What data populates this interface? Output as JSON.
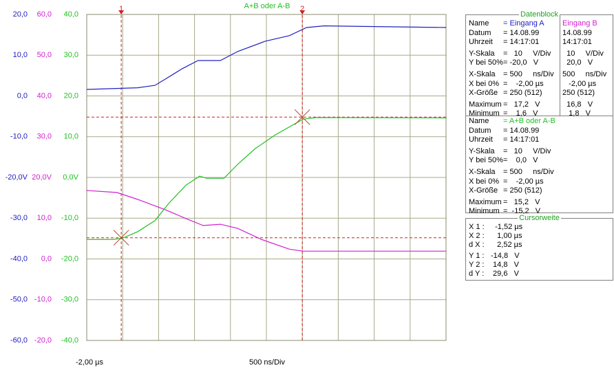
{
  "plot": {
    "title": "A+B oder A-B",
    "xlim": [
      -2,
      3
    ],
    "xticks": [
      -2,
      -1.5,
      -1,
      -0.5,
      0,
      0.5,
      1,
      1.5,
      2,
      2.5,
      3
    ],
    "x_start_label": "-2,00 µs",
    "x_scale_label": "500 ns/Div",
    "axes": [
      {
        "color": "#2020c0",
        "ylim": [
          -60,
          20
        ],
        "yticks": [
          {
            "value": 20,
            "label": "20,0"
          },
          {
            "value": 10,
            "label": "10,0"
          },
          {
            "value": 0,
            "label": "0,0"
          },
          {
            "value": -10,
            "label": "-10,0"
          },
          {
            "value": -20,
            "label": "-20,0V"
          },
          {
            "value": -30,
            "label": "-30,0"
          },
          {
            "value": -40,
            "label": "-40,0"
          },
          {
            "value": -50,
            "label": "-50,0"
          },
          {
            "value": -60,
            "label": "-60,0"
          }
        ]
      },
      {
        "color": "#d020d0",
        "ylim": [
          -20,
          60
        ],
        "yticks": [
          {
            "value": 60,
            "label": "60,0"
          },
          {
            "value": 50,
            "label": "50,0"
          },
          {
            "value": 40,
            "label": "40,0"
          },
          {
            "value": 30,
            "label": "30,0"
          },
          {
            "value": 20,
            "label": "20,0V"
          },
          {
            "value": 10,
            "label": "10,0"
          },
          {
            "value": 0,
            "label": "0,0"
          },
          {
            "value": -10,
            "label": "-10,0"
          },
          {
            "value": -20,
            "label": "-20,0"
          }
        ]
      },
      {
        "color": "#20c020",
        "ylim": [
          -40,
          40
        ],
        "yticks": [
          {
            "value": 40,
            "label": "40,0"
          },
          {
            "value": 30,
            "label": "30,0"
          },
          {
            "value": 20,
            "label": "20,0"
          },
          {
            "value": 10,
            "label": "10,0"
          },
          {
            "value": 0,
            "label": "0,0V"
          },
          {
            "value": -10,
            "label": "-10,0"
          },
          {
            "value": -20,
            "label": "-20,0"
          },
          {
            "value": -30,
            "label": "-30,0"
          },
          {
            "value": -40,
            "label": "-40,0"
          }
        ]
      }
    ],
    "series": [
      {
        "color": "#2020c0",
        "axis": 0,
        "x": [
          -2.0,
          -1.29,
          -1.05,
          -0.91,
          -0.67,
          -0.45,
          -0.14,
          0.1,
          0.48,
          0.82,
          1.06,
          1.3,
          3.0
        ],
        "values": [
          1.6,
          2.0,
          2.6,
          4.1,
          6.7,
          8.7,
          8.7,
          10.9,
          13.4,
          14.8,
          16.8,
          17.2,
          16.8
        ]
      },
      {
        "color": "#d020d0",
        "axis": 1,
        "x": [
          -2.0,
          -1.58,
          -1.29,
          -0.91,
          -0.62,
          -0.38,
          -0.14,
          0.1,
          0.43,
          0.82,
          1.01,
          3.0
        ],
        "values": [
          16.8,
          16.3,
          14.6,
          12.1,
          9.9,
          8.2,
          8.5,
          7.5,
          4.8,
          2.4,
          1.9,
          1.9
        ]
      },
      {
        "color": "#20c020",
        "axis": 2,
        "x": [
          -2.0,
          -1.63,
          -1.5,
          -1.29,
          -1.05,
          -0.86,
          -0.62,
          -0.43,
          -0.33,
          -0.09,
          0.1,
          0.34,
          0.62,
          1.01,
          1.2,
          3.0
        ],
        "values": [
          -15.2,
          -15.2,
          -14.9,
          -13.3,
          -10.6,
          -6.4,
          -1.9,
          0.3,
          -0.2,
          -0.2,
          3.2,
          7.0,
          10.4,
          14.3,
          14.7,
          14.6
        ]
      }
    ],
    "cursor_axis": 2,
    "cursor_color": "#d02020",
    "cursors": [
      {
        "label": "1",
        "x": -1.52,
        "y": -14.8
      },
      {
        "label": "2",
        "x": 1.0,
        "y": 14.8
      }
    ]
  },
  "datenblock": {
    "title": "Datenblock",
    "rows": [
      [
        "Name",
        "= Eingang A",
        "Eingang B"
      ],
      [
        "Datum",
        "= 14.08.99",
        "14.08.99"
      ],
      [
        "Uhrzeit",
        "= 14:17:01",
        "14:17:01"
      ],
      [
        "Y-Skala",
        "=   10     V/Div",
        "  10     V/Div"
      ],
      [
        "Y bei 50%",
        "= -20,0   V",
        "  20,0   V"
      ],
      [
        "X-Skala",
        "= 500     ns/Div",
        "500     ns/Div"
      ],
      [
        "X bei 0%",
        "=    -2,00 µs",
        "   -2,00 µs"
      ],
      [
        "X-Größe",
        "= 250 (512)",
        "250 (512)"
      ],
      [
        "Maximum",
        "=   17,2   V",
        "  16,8   V"
      ],
      [
        "Minimum",
        "=    1,6   V",
        "   1,8   V"
      ]
    ],
    "sum_rows": [
      [
        "Name",
        "= A+B oder A-B"
      ],
      [
        "Datum",
        "= 14.08.99"
      ],
      [
        "Uhrzeit",
        "= 14:17:01"
      ],
      [
        "Y-Skala",
        "=   10     V/Div"
      ],
      [
        "Y bei 50%",
        "=    0,0   V"
      ],
      [
        "X-Skala",
        "= 500     ns/Div"
      ],
      [
        "X bei 0%",
        "=    -2,00 µs"
      ],
      [
        "X-Größe",
        "= 250 (512)"
      ],
      [
        "Maximum",
        "=   15,2   V"
      ],
      [
        "Minimum",
        "=  -15,2   V"
      ]
    ]
  },
  "cursorweite": {
    "title": "Cursorweite",
    "rows": [
      [
        "X 1 :",
        "  -1,52 µs"
      ],
      [
        "X 2 :",
        "   1,00 µs"
      ],
      [
        "d X :",
        "   2,52 µs"
      ],
      [
        "Y 1 :",
        "-14,8   V"
      ],
      [
        "Y 2 :",
        " 14,8   V"
      ],
      [
        "d Y :",
        " 29,6   V"
      ]
    ]
  }
}
